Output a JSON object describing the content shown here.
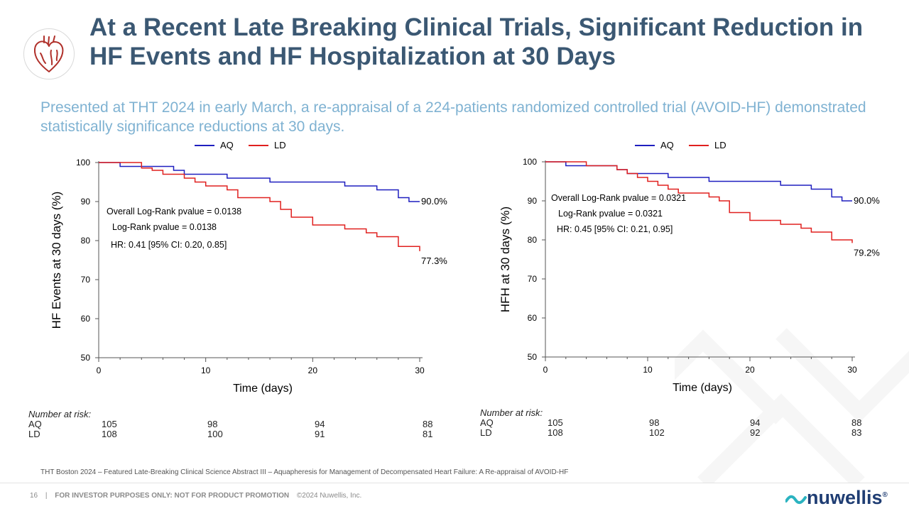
{
  "slide": {
    "title": "At a Recent Late Breaking Clinical Trials, Significant Reduction in HF Events and HF Hospitalization at 30 Days",
    "subtitle": "Presented at THT 2024 in early March, a re-appraisal of a 224-patients randomized controlled trial (AVOID-HF) demonstrated statistically significance reductions at 30 days.",
    "footnote": "THT Boston 2024 – Featured Late-Breaking Clinical Science Abstract III – Aquapheresis for Management of Decompensated Heart Failure: A Re-appraisal of AVOID-HF",
    "page_number": "16",
    "separator": "|",
    "footer_disclaimer": "FOR INVESTOR PURPOSES ONLY: NOT FOR PRODUCT PROMOTION",
    "copyright": "©2024 Nuwellis, Inc.",
    "brand": "nuwellis",
    "brand_symbol": "®",
    "icon": "heart-icon"
  },
  "colors": {
    "title": "#3b5873",
    "subtitle": "#7fb2d2",
    "aq": "#1f1fbf",
    "ld": "#e0201f",
    "brand": "#1f3d73"
  },
  "chart_data": [
    {
      "type": "line",
      "ylabel": "HF Events at 30 days (%)",
      "xlabel": "Time (days)",
      "xlim": [
        0,
        30
      ],
      "ylim": [
        50,
        100
      ],
      "xticks": [
        0,
        10,
        20,
        30
      ],
      "yticks": [
        50,
        60,
        70,
        80,
        90,
        100
      ],
      "legend_position": "top",
      "grid": false,
      "series": [
        {
          "name": "AQ",
          "color": "#1f1fbf",
          "step": true,
          "x": [
            0,
            2,
            5,
            7,
            8,
            12,
            16,
            23,
            26,
            28,
            29,
            30
          ],
          "y": [
            100,
            99,
            99,
            98,
            97,
            96,
            95,
            94,
            93,
            91,
            90,
            90
          ]
        },
        {
          "name": "LD",
          "color": "#e0201f",
          "step": true,
          "x": [
            0,
            4,
            5,
            6,
            8,
            9,
            10,
            12,
            13,
            16,
            17,
            18,
            20,
            23,
            25,
            26,
            28,
            30
          ],
          "y": [
            100,
            98.6,
            98,
            97,
            96,
            95,
            94,
            93,
            91,
            90,
            88,
            86,
            84,
            83,
            82,
            81,
            78.5,
            77.3
          ]
        }
      ],
      "end_labels": [
        "90.0%",
        "77.3%"
      ],
      "annotations": [
        "Overall Log-Rank pvalue = 0.0138",
        "Log-Rank pvalue = 0.0138",
        "HR: 0.41 [95% CI: 0.20, 0.85]"
      ],
      "number_at_risk": {
        "label": "Number at risk:",
        "rows": [
          {
            "group": "AQ",
            "values": [
              "105",
              "98",
              "94",
              "88"
            ]
          },
          {
            "group": "LD",
            "values": [
              "108",
              "100",
              "91",
              "81"
            ]
          }
        ]
      }
    },
    {
      "type": "line",
      "ylabel": "HFH at 30 days (%)",
      "xlabel": "Time (days)",
      "xlim": [
        0,
        30
      ],
      "ylim": [
        50,
        100
      ],
      "xticks": [
        0,
        10,
        20,
        30
      ],
      "yticks": [
        50,
        60,
        70,
        80,
        90,
        100
      ],
      "legend_position": "top",
      "grid": false,
      "series": [
        {
          "name": "AQ",
          "color": "#1f1fbf",
          "step": true,
          "x": [
            0,
            2,
            5,
            7,
            8,
            12,
            16,
            23,
            26,
            28,
            29,
            30
          ],
          "y": [
            100,
            99,
            99,
            98,
            97,
            96,
            95,
            94,
            93,
            91,
            90,
            90
          ]
        },
        {
          "name": "LD",
          "color": "#e0201f",
          "step": true,
          "x": [
            0,
            4,
            7,
            8,
            9,
            10,
            11,
            12,
            13,
            16,
            17,
            18,
            20,
            23,
            25,
            26,
            28,
            30
          ],
          "y": [
            100,
            99,
            98,
            97,
            96,
            95,
            94,
            93,
            92,
            91,
            90,
            87,
            85,
            84,
            83,
            82,
            80,
            79.2
          ]
        }
      ],
      "end_labels": [
        "90.0%",
        "79.2%"
      ],
      "annotations": [
        "Overall Log-Rank pvalue = 0.0321",
        "Log-Rank pvalue = 0.0321",
        "HR: 0.45 [95% CI: 0.21, 0.95]"
      ],
      "number_at_risk": {
        "label": "Number at risk:",
        "rows": [
          {
            "group": "AQ",
            "values": [
              "105",
              "98",
              "94",
              "88"
            ]
          },
          {
            "group": "LD",
            "values": [
              "108",
              "102",
              "92",
              "83"
            ]
          }
        ]
      }
    }
  ]
}
